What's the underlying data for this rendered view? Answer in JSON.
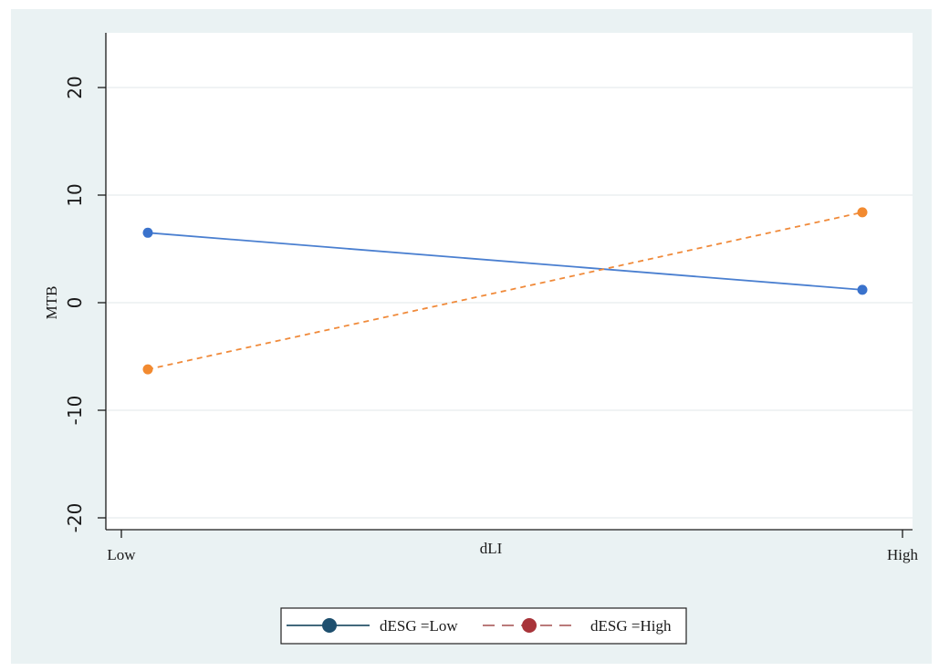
{
  "chart_data": {
    "type": "line",
    "categories": [
      "Low",
      "High"
    ],
    "xlabel": "dLI",
    "ylabel": "MTB",
    "ylim": [
      -20,
      20
    ],
    "yticks": [
      -20,
      -10,
      0,
      10,
      20
    ],
    "grid": true,
    "legend_position": "bottom",
    "series": [
      {
        "name": "dESG =Low",
        "values": [
          6.5,
          1.2
        ],
        "line_color": "#4a7fd0",
        "marker_color": "#3a72cc",
        "dashed": false,
        "legend_line_color": "#27536a",
        "legend_marker_color": "#1e4f6e"
      },
      {
        "name": "dESG =High",
        "values": [
          -6.2,
          8.4
        ],
        "line_color": "#f08a3a",
        "marker_color": "#f28a30",
        "dashed": true,
        "legend_line_color": "#b06868",
        "legend_marker_color": "#a8343a"
      }
    ]
  },
  "colors": {
    "background": "#eaf2f3",
    "plot_area": "#ffffff",
    "axis": "#1a1a1a",
    "grid": "#e6ecee"
  }
}
